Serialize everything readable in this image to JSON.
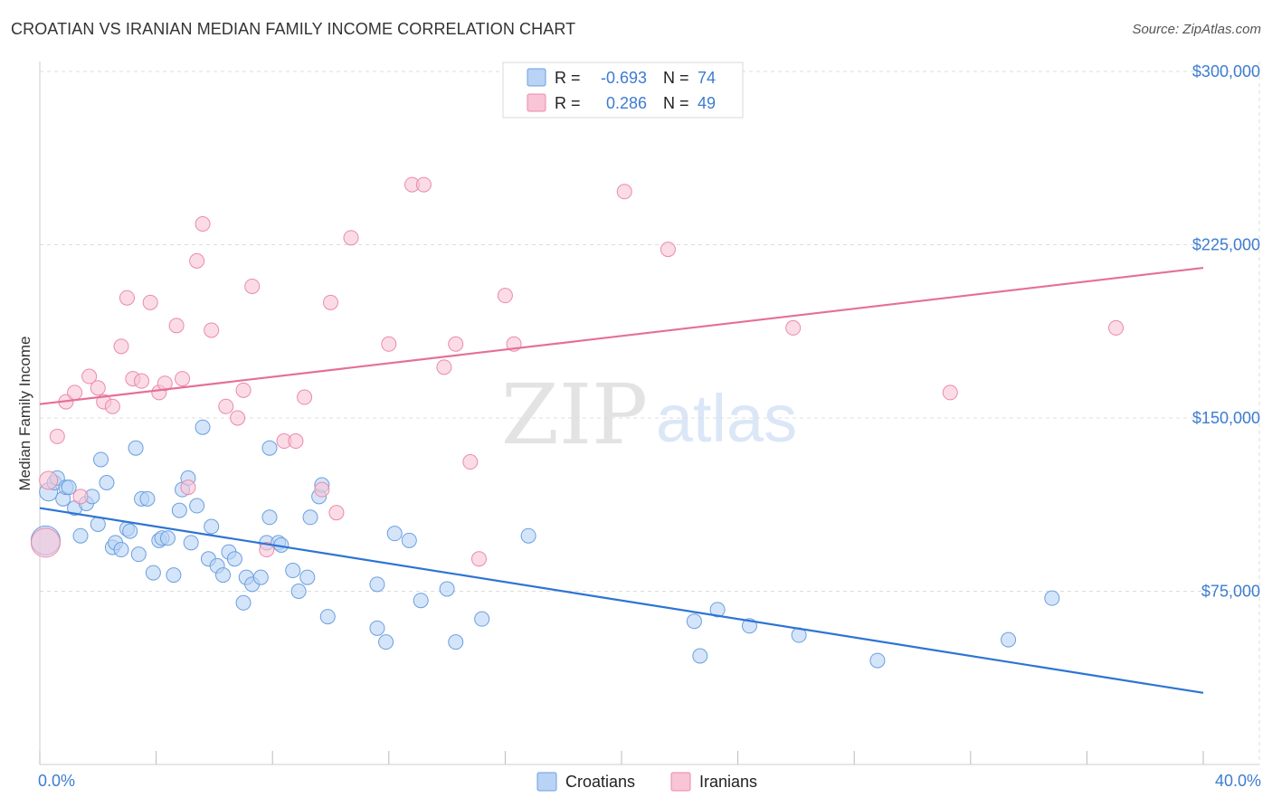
{
  "title": "CROATIAN VS IRANIAN MEDIAN FAMILY INCOME CORRELATION CHART",
  "source": "Source: ZipAtlas.com",
  "watermark": {
    "zip": "ZIP",
    "atlas": "atlas"
  },
  "colors": {
    "blue_fill": "#b8d3f5",
    "blue_stroke": "#6c9fdf",
    "blue_line": "#2d74d4",
    "pink_fill": "#f9c4d6",
    "pink_stroke": "#eb8aaa",
    "pink_line": "#e56f99",
    "tick_label": "#3d7cd0",
    "grid": "#dcdcdc"
  },
  "legend_top": [
    {
      "key": "blue",
      "r_label": "R =",
      "r_value": "-0.693",
      "n_label": "N =",
      "n_value": "74"
    },
    {
      "key": "pink",
      "r_label": "R =",
      "r_value": "0.286",
      "n_label": "N =",
      "n_value": "49"
    }
  ],
  "legend_bottom": [
    {
      "key": "blue",
      "label": "Croatians"
    },
    {
      "key": "pink",
      "label": "Iranians"
    }
  ],
  "chart_data": {
    "type": "scatter",
    "title": "CROATIAN VS IRANIAN MEDIAN FAMILY INCOME CORRELATION CHART",
    "xlabel": "",
    "ylabel": "Median Family Income",
    "xlim": [
      0,
      40
    ],
    "ylim": [
      0,
      300000
    ],
    "x_tick_labels": [
      {
        "value": 0,
        "label": "0.0%"
      },
      {
        "value": 40,
        "label": "40.0%"
      }
    ],
    "y_ticks": [
      {
        "value": 75000,
        "label": "$75,000"
      },
      {
        "value": 150000,
        "label": "$150,000"
      },
      {
        "value": 225000,
        "label": "$225,000"
      },
      {
        "value": 300000,
        "label": "$300,000"
      }
    ],
    "series": [
      {
        "name": "Croatians",
        "key": "blue",
        "r": -0.693,
        "n": 74,
        "trend": {
          "x": [
            0,
            40
          ],
          "y": [
            111000,
            31000
          ]
        },
        "points": [
          [
            0.2,
            97000,
            16
          ],
          [
            0.3,
            118000,
            10
          ],
          [
            0.5,
            122000,
            8
          ],
          [
            0.6,
            124000,
            8
          ],
          [
            0.8,
            115000,
            8
          ],
          [
            0.9,
            120000,
            8
          ],
          [
            1.0,
            120000,
            8
          ],
          [
            1.2,
            111000,
            8
          ],
          [
            1.4,
            99000,
            8
          ],
          [
            1.6,
            113000,
            8
          ],
          [
            1.8,
            116000,
            8
          ],
          [
            2.0,
            104000,
            8
          ],
          [
            2.1,
            132000,
            8
          ],
          [
            2.3,
            122000,
            8
          ],
          [
            2.5,
            94000,
            8
          ],
          [
            2.6,
            96000,
            8
          ],
          [
            2.8,
            93000,
            8
          ],
          [
            3.0,
            102000,
            8
          ],
          [
            3.1,
            101000,
            8
          ],
          [
            3.3,
            137000,
            8
          ],
          [
            3.4,
            91000,
            8
          ],
          [
            3.5,
            115000,
            8
          ],
          [
            3.7,
            115000,
            8
          ],
          [
            3.9,
            83000,
            8
          ],
          [
            4.1,
            97000,
            8
          ],
          [
            4.2,
            98000,
            8
          ],
          [
            4.4,
            98000,
            8
          ],
          [
            4.6,
            82000,
            8
          ],
          [
            4.8,
            110000,
            8
          ],
          [
            4.9,
            119000,
            8
          ],
          [
            5.1,
            124000,
            8
          ],
          [
            5.2,
            96000,
            8
          ],
          [
            5.4,
            112000,
            8
          ],
          [
            5.6,
            146000,
            8
          ],
          [
            5.8,
            89000,
            8
          ],
          [
            5.9,
            103000,
            8
          ],
          [
            6.1,
            86000,
            8
          ],
          [
            6.3,
            82000,
            8
          ],
          [
            6.5,
            92000,
            8
          ],
          [
            6.7,
            89000,
            8
          ],
          [
            7.0,
            70000,
            8
          ],
          [
            7.1,
            81000,
            8
          ],
          [
            7.3,
            78000,
            8
          ],
          [
            7.6,
            81000,
            8
          ],
          [
            7.8,
            96000,
            8
          ],
          [
            7.9,
            107000,
            8
          ],
          [
            7.9,
            137000,
            8
          ],
          [
            8.2,
            96000,
            8
          ],
          [
            8.3,
            95000,
            8
          ],
          [
            8.7,
            84000,
            8
          ],
          [
            8.9,
            75000,
            8
          ],
          [
            9.2,
            81000,
            8
          ],
          [
            9.3,
            107000,
            8
          ],
          [
            9.6,
            116000,
            8
          ],
          [
            9.7,
            121000,
            8
          ],
          [
            9.9,
            64000,
            8
          ],
          [
            11.6,
            78000,
            8
          ],
          [
            11.6,
            59000,
            8
          ],
          [
            11.9,
            53000,
            8
          ],
          [
            12.2,
            100000,
            8
          ],
          [
            12.7,
            97000,
            8
          ],
          [
            13.1,
            71000,
            8
          ],
          [
            14.0,
            76000,
            8
          ],
          [
            14.3,
            53000,
            8
          ],
          [
            15.2,
            63000,
            8
          ],
          [
            16.8,
            99000,
            8
          ],
          [
            22.5,
            62000,
            8
          ],
          [
            22.7,
            47000,
            8
          ],
          [
            23.3,
            67000,
            8
          ],
          [
            24.4,
            60000,
            8
          ],
          [
            26.1,
            56000,
            8
          ],
          [
            28.8,
            45000,
            8
          ],
          [
            33.3,
            54000,
            8
          ],
          [
            34.8,
            72000,
            8
          ]
        ]
      },
      {
        "name": "Iranians",
        "key": "pink",
        "r": 0.286,
        "n": 49,
        "trend": {
          "x": [
            0,
            40
          ],
          "y": [
            156000,
            215000
          ]
        },
        "points": [
          [
            0.2,
            96000,
            16
          ],
          [
            0.3,
            123000,
            10
          ],
          [
            0.6,
            142000,
            8
          ],
          [
            0.9,
            157000,
            8
          ],
          [
            1.2,
            161000,
            8
          ],
          [
            1.4,
            116000,
            8
          ],
          [
            1.7,
            168000,
            8
          ],
          [
            2.0,
            163000,
            8
          ],
          [
            2.2,
            157000,
            8
          ],
          [
            2.5,
            155000,
            8
          ],
          [
            2.8,
            181000,
            8
          ],
          [
            3.0,
            202000,
            8
          ],
          [
            3.2,
            167000,
            8
          ],
          [
            3.5,
            166000,
            8
          ],
          [
            3.8,
            200000,
            8
          ],
          [
            4.1,
            161000,
            8
          ],
          [
            4.3,
            165000,
            8
          ],
          [
            4.7,
            190000,
            8
          ],
          [
            4.9,
            167000,
            8
          ],
          [
            5.1,
            120000,
            8
          ],
          [
            5.4,
            218000,
            8
          ],
          [
            5.6,
            234000,
            8
          ],
          [
            5.9,
            188000,
            8
          ],
          [
            6.4,
            155000,
            8
          ],
          [
            6.8,
            150000,
            8
          ],
          [
            7.0,
            162000,
            8
          ],
          [
            7.3,
            207000,
            8
          ],
          [
            7.8,
            93000,
            8
          ],
          [
            8.4,
            140000,
            8
          ],
          [
            8.8,
            140000,
            8
          ],
          [
            9.1,
            159000,
            8
          ],
          [
            9.7,
            119000,
            8
          ],
          [
            10.0,
            200000,
            8
          ],
          [
            10.2,
            109000,
            8
          ],
          [
            10.7,
            228000,
            8
          ],
          [
            12.0,
            182000,
            8
          ],
          [
            12.8,
            251000,
            8
          ],
          [
            13.2,
            251000,
            8
          ],
          [
            13.9,
            172000,
            8
          ],
          [
            14.3,
            182000,
            8
          ],
          [
            14.8,
            131000,
            8
          ],
          [
            15.1,
            89000,
            8
          ],
          [
            16.0,
            203000,
            8
          ],
          [
            16.3,
            182000,
            8
          ],
          [
            20.1,
            248000,
            8
          ],
          [
            21.6,
            223000,
            8
          ],
          [
            25.9,
            189000,
            8
          ],
          [
            31.3,
            161000,
            8
          ],
          [
            37.0,
            189000,
            8
          ]
        ]
      }
    ]
  }
}
